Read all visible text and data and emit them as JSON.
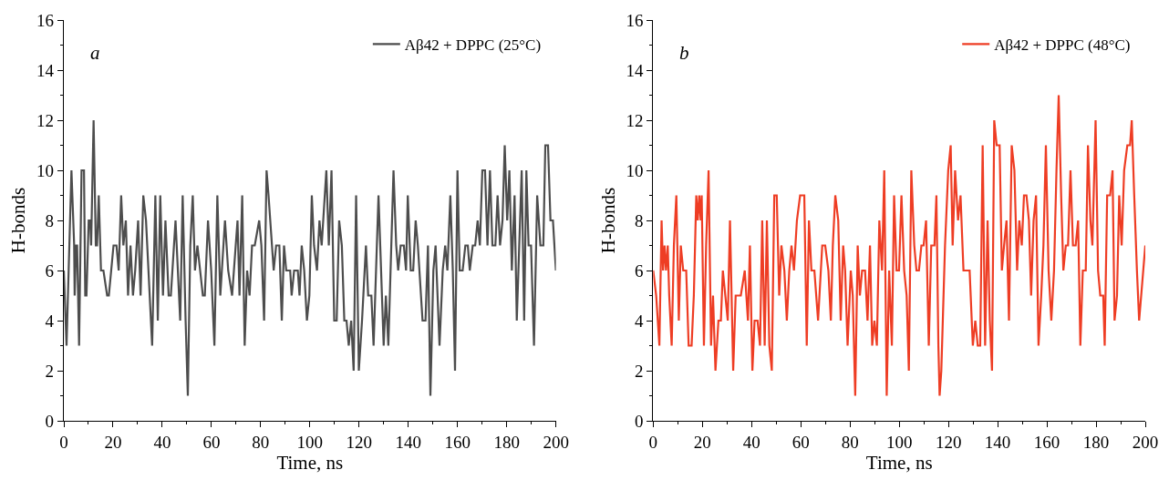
{
  "chart_data": [
    {
      "type": "line",
      "xlabel": "Time, ns",
      "ylabel": "H-bonds",
      "xlim": [
        0,
        200
      ],
      "ylim": [
        0,
        16
      ],
      "xticks": [
        0,
        20,
        40,
        60,
        80,
        100,
        120,
        140,
        160,
        180,
        200
      ],
      "yticks": [
        0,
        2,
        4,
        6,
        8,
        10,
        12,
        14,
        16
      ],
      "legend": "top right",
      "marker": "none",
      "line_style": "solid",
      "annotations": [
        "a"
      ],
      "series": [
        {
          "name": "Aβ42 + DPPC (25°C)",
          "color": "#4d4d4d",
          "x": [
            0,
            1.1,
            3.1,
            4.2,
            4.4,
            5.0,
            5.4,
            6.2,
            7.2,
            8.2,
            8.7,
            9.2,
            10.1,
            10.7,
            11.1,
            12.1,
            13.0,
            13.5,
            14.2,
            15.1,
            16.1,
            17.6,
            18.3,
            20.2,
            21.4,
            22.3,
            23.3,
            24.2,
            25.2,
            26.1,
            27.1,
            28.1,
            29.0,
            30.2,
            31.2,
            32.3,
            33.4,
            35.9,
            37.2,
            38.2,
            39.2,
            40.3,
            41.3,
            42.6,
            43.5,
            45.4,
            47.3,
            48.3,
            49.5,
            50.4,
            51.4,
            52.4,
            53.3,
            54.3,
            56.5,
            57.3,
            58.6,
            59.9,
            61.2,
            62.4,
            63.6,
            65.5,
            66.8,
            68.4,
            70.6,
            71.4,
            72.5,
            73.5,
            74.5,
            75.5,
            76.5,
            77.6,
            79.4,
            80.3,
            81.4,
            82.4,
            83.2,
            85.3,
            86.3,
            87.6,
            88.6,
            89.5,
            90.4,
            92.0,
            92.6,
            93.6,
            95.1,
            95.8,
            96.7,
            97.7,
            98.8,
            99.8,
            100.8,
            101.7,
            102.9,
            103.9,
            104.8,
            106.7,
            107.7,
            108.8,
            109.9,
            110.9,
            111.9,
            113.0,
            114.0,
            114.9,
            115.8,
            116.8,
            117.8,
            118.8,
            119.9,
            121.2,
            122.8,
            123.7,
            125.0,
            125.9,
            127.9,
            130.0,
            130.9,
            131.9,
            134.0,
            135.1,
            135.9,
            136.9,
            138.2,
            139.1,
            139.8,
            141.0,
            142.0,
            143.0,
            143.9,
            145.8,
            147.0,
            148.0,
            149.0,
            150.2,
            151.1,
            152.7,
            154.0,
            155.0,
            155.9,
            157.1,
            158.1,
            159.0,
            160.0,
            160.9,
            162.1,
            163.2,
            164.2,
            165.0,
            166.2,
            167.2,
            168.2,
            169.1,
            170.1,
            171.2,
            172.2,
            173.2,
            174.2,
            175.4,
            176.3,
            177.3,
            178.3,
            179.2,
            180.2,
            181.1,
            182.1,
            183.2,
            184.1,
            185.1,
            186.1,
            187.1,
            188.0,
            188.9,
            189.9,
            191.1,
            192.4,
            193.7,
            194.9,
            195.7,
            196.8,
            197.8,
            198.8,
            200
          ],
          "values": [
            6,
            3,
            10,
            7,
            5,
            7,
            7,
            3,
            10,
            10,
            5,
            5,
            8,
            8,
            7,
            12,
            7,
            7,
            9,
            6,
            6,
            5,
            5,
            7,
            7,
            6,
            9,
            7,
            8,
            5,
            7,
            5,
            6,
            8,
            5,
            9,
            8,
            3,
            9,
            4,
            9,
            5,
            8,
            5,
            5,
            8,
            4,
            9,
            4,
            1,
            7,
            9,
            6,
            7,
            5,
            5,
            8,
            6,
            3,
            9,
            5,
            8,
            6,
            5,
            8,
            5,
            9,
            3,
            6,
            5,
            7,
            7,
            8,
            7,
            4,
            10,
            9,
            6,
            7,
            7,
            4,
            7,
            6,
            6,
            5,
            6,
            6,
            5,
            7,
            6,
            4,
            5,
            9,
            7,
            6,
            8,
            7,
            10,
            7,
            10,
            4,
            4,
            8,
            7,
            4,
            4,
            3,
            4,
            2,
            9,
            2,
            4,
            7,
            5,
            5,
            3,
            9,
            3,
            5,
            3,
            10,
            7,
            6,
            7,
            7,
            6,
            9,
            6,
            6,
            8,
            7,
            4,
            4,
            7,
            1,
            6,
            7,
            3,
            6,
            7,
            6,
            9,
            6,
            2,
            10,
            6,
            6,
            7,
            7,
            6,
            7,
            7,
            8,
            7,
            10,
            10,
            7,
            10,
            7,
            7,
            9,
            7,
            8,
            11,
            8,
            10,
            6,
            9,
            4,
            7,
            10,
            4,
            10,
            7,
            7,
            3,
            9,
            7,
            7,
            11,
            11,
            8,
            8,
            6
          ]
        }
      ]
    },
    {
      "type": "line",
      "xlabel": "Time, ns",
      "ylabel": "H-bonds",
      "xlim": [
        0,
        200
      ],
      "ylim": [
        0,
        16
      ],
      "xticks": [
        0,
        20,
        40,
        60,
        80,
        100,
        120,
        140,
        160,
        180,
        200
      ],
      "yticks": [
        0,
        2,
        4,
        6,
        8,
        10,
        12,
        14,
        16
      ],
      "legend": "top right",
      "marker": "none",
      "line_style": "solid",
      "annotations": [
        "b"
      ],
      "series": [
        {
          "name": "Aβ42 + DPPC (48°C)",
          "color": "#ee3d24",
          "x": [
            0,
            1.2,
            2.5,
            3.4,
            4.0,
            4.6,
            5.2,
            5.9,
            6.5,
            7.5,
            8.4,
            9.4,
            10.4,
            11.2,
            12.2,
            13.4,
            14.4,
            15.6,
            16.5,
            17.5,
            18.1,
            18.7,
            19.3,
            19.7,
            20.6,
            21.5,
            22.5,
            23.5,
            24.3,
            25.3,
            26.5,
            27.5,
            28.3,
            29.3,
            30.3,
            31.2,
            32.5,
            33.5,
            35.6,
            37.2,
            38.5,
            39.3,
            40.3,
            41.2,
            42.4,
            43.4,
            44.3,
            45.3,
            46.2,
            47.2,
            48.2,
            49.2,
            50.2,
            51.2,
            52.1,
            53.3,
            54.3,
            55.3,
            56.2,
            57.2,
            58.4,
            59.7,
            61.4,
            62.4,
            63.3,
            64.3,
            65.5,
            67.0,
            68.7,
            69.9,
            71.2,
            72.2,
            73.0,
            74.0,
            75.2,
            76.2,
            77.2,
            78.0,
            79.0,
            80.3,
            81.1,
            82.1,
            83.1,
            84.0,
            84.9,
            86.1,
            87.1,
            88.1,
            89.0,
            89.9,
            90.9,
            91.9,
            93.0,
            93.9,
            94.9,
            95.9,
            97.0,
            97.9,
            98.9,
            99.9,
            100.9,
            102.0,
            103.0,
            103.9,
            104.9,
            106.1,
            107.0,
            108.0,
            109.0,
            109.9,
            110.9,
            112.0,
            113.0,
            114.3,
            115.1,
            115.9,
            116.4,
            117.1,
            118.6,
            119.9,
            120.9,
            121.7,
            122.7,
            123.9,
            124.9,
            126.1,
            127.4,
            128.6,
            129.9,
            130.9,
            131.9,
            132.9,
            133.9,
            134.9,
            135.9,
            136.8,
            137.7,
            138.6,
            139.6,
            140.8,
            141.7,
            142.6,
            143.6,
            144.6,
            145.7,
            146.8,
            147.9,
            148.8,
            149.8,
            150.7,
            151.7,
            152.7,
            153.6,
            154.6,
            155.6,
            156.6,
            157.7,
            158.6,
            159.6,
            160.7,
            161.8,
            162.9,
            163.9,
            164.8,
            165.8,
            166.7,
            167.7,
            168.6,
            169.6,
            170.6,
            171.7,
            172.7,
            173.6,
            174.6,
            175.8,
            176.7,
            177.7,
            178.5,
            179.8,
            180.8,
            181.7,
            182.9,
            183.5,
            184.5,
            185.7,
            186.7,
            187.5,
            188.5,
            189.4,
            190.4,
            191.4,
            192.7,
            193.8,
            194.5,
            195.5,
            196.6,
            197.5,
            200
          ],
          "values": [
            6,
            5,
            3,
            8,
            6,
            7,
            6,
            7,
            5,
            3,
            7,
            9,
            4,
            7,
            6,
            6,
            3,
            3,
            5,
            9,
            8,
            9,
            8,
            9,
            3,
            7,
            10,
            3,
            5,
            2,
            4,
            4,
            6,
            5,
            4,
            8,
            2,
            5,
            5,
            6,
            4,
            7,
            2,
            4,
            4,
            3,
            8,
            3,
            8,
            3,
            2,
            9,
            9,
            5,
            7,
            6,
            4,
            6,
            7,
            6,
            8,
            9,
            9,
            3,
            8,
            6,
            6,
            4,
            7,
            7,
            6,
            4,
            7,
            9,
            8,
            4,
            7,
            6,
            3,
            6,
            5,
            1,
            7,
            5,
            6,
            6,
            4,
            7,
            3,
            4,
            3,
            8,
            6,
            10,
            1,
            6,
            3,
            9,
            6,
            6,
            9,
            6,
            5,
            2,
            10,
            7,
            6,
            6,
            7,
            7,
            8,
            3,
            7,
            7,
            9,
            3,
            1,
            2,
            7,
            10,
            11,
            7,
            10,
            8,
            9,
            6,
            6,
            6,
            3,
            4,
            3,
            3,
            11,
            3,
            8,
            4,
            2,
            12,
            11,
            11,
            6,
            7,
            8,
            4,
            11,
            10,
            6,
            8,
            7,
            9,
            9,
            8,
            5,
            8,
            9,
            3,
            5,
            7,
            11,
            6,
            4,
            6,
            10,
            13,
            9,
            6,
            7,
            7,
            10,
            7,
            7,
            8,
            3,
            6,
            6,
            11,
            8,
            7,
            12,
            6,
            5,
            5,
            3,
            9,
            9,
            10,
            4,
            5,
            9,
            7,
            10,
            11,
            11,
            12,
            9,
            6,
            4,
            7
          ]
        }
      ]
    }
  ]
}
